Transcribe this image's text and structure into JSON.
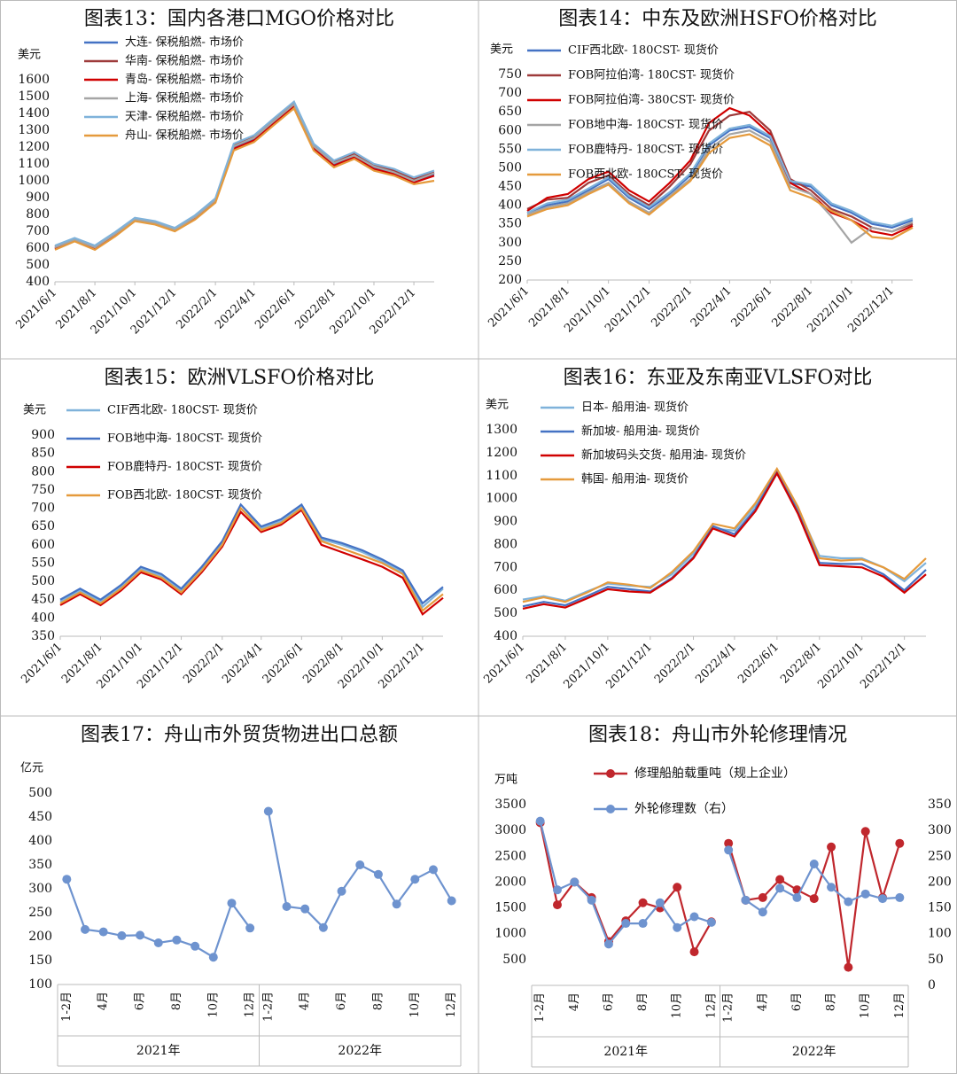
{
  "chart_data": [
    {
      "type": "line",
      "title": "图表13：国内各港口MGO价格对比",
      "y_label": "美元",
      "x": [
        "2021/6/1",
        "2021/7/1",
        "2021/8/1",
        "2021/9/1",
        "2021/10/1",
        "2021/11/1",
        "2021/12/1",
        "2022/1/1",
        "2022/2/1",
        "2022/3/1",
        "2022/4/1",
        "2022/5/1",
        "2022/6/1",
        "2022/7/1",
        "2022/8/1",
        "2022/9/1",
        "2022/10/1",
        "2022/11/1",
        "2022/12/1",
        "2023/1/1"
      ],
      "xlim": [
        "2021/6/1",
        "2023/1/1"
      ],
      "xticks": [
        "2021/6/1",
        "2021/8/1",
        "2021/10/1",
        "2021/12/1",
        "2022/2/1",
        "2022/4/1",
        "2022/6/1",
        "2022/8/1",
        "2022/10/1",
        "2022/12/1"
      ],
      "ylim": [
        400,
        1600
      ],
      "yticks": [
        400,
        500,
        600,
        700,
        800,
        900,
        1000,
        1100,
        1200,
        1300,
        1400,
        1500,
        1600
      ],
      "series": [
        {
          "name": "大连- 保税船燃- 市场价",
          "color": "#4472c4",
          "values": [
            600,
            650,
            600,
            680,
            770,
            750,
            710,
            780,
            880,
            1200,
            1250,
            1350,
            1450,
            1200,
            1100,
            1150,
            1080,
            1050,
            1000,
            1040
          ]
        },
        {
          "name": "华南- 保税船燃- 市场价",
          "color": "#9e3b3b",
          "values": [
            610,
            655,
            610,
            690,
            775,
            755,
            715,
            790,
            890,
            1210,
            1260,
            1360,
            1460,
            1210,
            1110,
            1160,
            1090,
            1060,
            1010,
            1050
          ]
        },
        {
          "name": "青岛- 保税船燃- 市场价",
          "color": "#d00000",
          "values": [
            595,
            645,
            595,
            675,
            765,
            745,
            705,
            775,
            875,
            1190,
            1240,
            1340,
            1440,
            1190,
            1090,
            1140,
            1070,
            1040,
            990,
            1030
          ]
        },
        {
          "name": "上海- 保税船燃- 市场价",
          "color": "#a5a5a5",
          "values": [
            605,
            650,
            605,
            685,
            770,
            750,
            710,
            785,
            885,
            1205,
            1255,
            1355,
            1455,
            1205,
            1105,
            1150,
            1085,
            1050,
            1000,
            1045
          ]
        },
        {
          "name": "天津- 保税船燃- 市场价",
          "color": "#7fb2da",
          "values": [
            615,
            660,
            615,
            695,
            780,
            760,
            720,
            795,
            895,
            1220,
            1270,
            1370,
            1470,
            1220,
            1120,
            1170,
            1100,
            1070,
            1020,
            1060
          ]
        },
        {
          "name": "舟山- 保税船燃- 市场价",
          "color": "#e59a3c",
          "values": [
            590,
            640,
            590,
            670,
            760,
            740,
            700,
            770,
            870,
            1180,
            1230,
            1330,
            1430,
            1180,
            1080,
            1130,
            1060,
            1030,
            980,
            1000
          ]
        }
      ]
    },
    {
      "type": "line",
      "title": "图表14：中东及欧洲HSFO价格对比",
      "y_label": "美元",
      "x": [
        "2021/6/1",
        "2021/7/1",
        "2021/8/1",
        "2021/9/1",
        "2021/10/1",
        "2021/11/1",
        "2021/12/1",
        "2022/1/1",
        "2022/2/1",
        "2022/3/1",
        "2022/4/1",
        "2022/5/1",
        "2022/6/1",
        "2022/7/1",
        "2022/8/1",
        "2022/9/1",
        "2022/10/1",
        "2022/11/1",
        "2022/12/1",
        "2023/1/1"
      ],
      "xlim": [
        "2021/6/1",
        "2023/1/1"
      ],
      "xticks": [
        "2021/6/1",
        "2021/8/1",
        "2021/10/1",
        "2021/12/1",
        "2022/2/1",
        "2022/4/1",
        "2022/6/1",
        "2022/8/1",
        "2022/10/1",
        "2022/12/1"
      ],
      "ylim": [
        200,
        750
      ],
      "yticks": [
        200,
        250,
        300,
        350,
        400,
        450,
        500,
        550,
        600,
        650,
        700,
        750
      ],
      "series": [
        {
          "name": "CIF西北欧- 180CST- 现货价",
          "color": "#4472c4",
          "values": [
            380,
            400,
            410,
            440,
            470,
            420,
            390,
            430,
            480,
            560,
            600,
            610,
            580,
            460,
            450,
            400,
            380,
            350,
            340,
            360
          ]
        },
        {
          "name": "FOB阿拉伯湾- 180CST- 现货价",
          "color": "#9e3b3b",
          "values": [
            390,
            415,
            420,
            460,
            480,
            430,
            400,
            450,
            510,
            600,
            640,
            650,
            600,
            470,
            440,
            390,
            370,
            340,
            330,
            350
          ]
        },
        {
          "name": "FOB阿拉伯湾- 380CST- 现货价",
          "color": "#d00000",
          "values": [
            385,
            420,
            430,
            470,
            490,
            440,
            410,
            460,
            520,
            620,
            660,
            640,
            590,
            460,
            430,
            380,
            360,
            330,
            320,
            345
          ]
        },
        {
          "name": "FOB地中海- 180CST- 现货价",
          "color": "#a5a5a5",
          "values": [
            375,
            395,
            405,
            435,
            460,
            410,
            380,
            425,
            470,
            550,
            590,
            600,
            570,
            450,
            430,
            370,
            300,
            340,
            330,
            355
          ]
        },
        {
          "name": "FOB鹿特丹- 180CST- 现货价",
          "color": "#7fb2da",
          "values": [
            380,
            405,
            415,
            445,
            475,
            425,
            395,
            435,
            485,
            565,
            605,
            615,
            585,
            465,
            455,
            405,
            385,
            355,
            345,
            365
          ]
        },
        {
          "name": "FOB西北欧- 180CST- 现货价",
          "color": "#e59a3c",
          "values": [
            370,
            390,
            400,
            430,
            455,
            405,
            375,
            420,
            465,
            540,
            580,
            590,
            560,
            440,
            420,
            385,
            360,
            315,
            310,
            340
          ]
        }
      ]
    },
    {
      "type": "line",
      "title": "图表15：欧洲VLSFO价格对比",
      "y_label": "美元",
      "x": [
        "2021/6/1",
        "2021/7/1",
        "2021/8/1",
        "2021/9/1",
        "2021/10/1",
        "2021/11/1",
        "2021/12/1",
        "2022/1/1",
        "2022/2/1",
        "2022/3/1",
        "2022/4/1",
        "2022/5/1",
        "2022/6/1",
        "2022/7/1",
        "2022/8/1",
        "2022/9/1",
        "2022/10/1",
        "2022/11/1",
        "2022/12/1",
        "2023/1/1"
      ],
      "xlim": [
        "2021/6/1",
        "2023/1/1"
      ],
      "xticks": [
        "2021/6/1",
        "2021/8/1",
        "2021/10/1",
        "2021/12/1",
        "2022/2/1",
        "2022/4/1",
        "2022/6/1",
        "2022/8/1",
        "2022/10/1",
        "2022/12/1"
      ],
      "ylim": [
        350,
        900
      ],
      "yticks": [
        350,
        400,
        450,
        500,
        550,
        600,
        650,
        700,
        750,
        800,
        850,
        900
      ],
      "series": [
        {
          "name": "CIF西北欧- 180CST- 现货价",
          "color": "#7fb2da",
          "values": [
            445,
            475,
            445,
            485,
            535,
            515,
            475,
            535,
            605,
            700,
            645,
            665,
            705,
            615,
            600,
            580,
            555,
            525,
            430,
            480
          ]
        },
        {
          "name": "FOB地中海- 180CST- 现货价",
          "color": "#4472c4",
          "values": [
            450,
            480,
            450,
            490,
            540,
            520,
            480,
            540,
            610,
            710,
            650,
            670,
            710,
            620,
            605,
            585,
            560,
            530,
            440,
            485
          ]
        },
        {
          "name": "FOB鹿特丹- 180CST- 现货价",
          "color": "#d00000",
          "values": [
            435,
            465,
            435,
            475,
            525,
            505,
            465,
            525,
            595,
            690,
            635,
            655,
            695,
            600,
            580,
            560,
            540,
            510,
            410,
            455
          ]
        },
        {
          "name": "FOB西北欧- 180CST- 现货价",
          "color": "#e59a3c",
          "values": [
            440,
            470,
            440,
            480,
            530,
            510,
            470,
            530,
            600,
            700,
            640,
            660,
            700,
            610,
            590,
            570,
            550,
            520,
            420,
            465
          ]
        }
      ]
    },
    {
      "type": "line",
      "title": "图表16：东亚及东南亚VLSFO对比",
      "y_label": "美元",
      "x": [
        "2021/6/1",
        "2021/7/1",
        "2021/8/1",
        "2021/9/1",
        "2021/10/1",
        "2021/11/1",
        "2021/12/1",
        "2022/1/1",
        "2022/2/1",
        "2022/3/1",
        "2022/4/1",
        "2022/5/1",
        "2022/6/1",
        "2022/7/1",
        "2022/8/1",
        "2022/9/1",
        "2022/10/1",
        "2022/11/1",
        "2022/12/1",
        "2023/1/1"
      ],
      "xlim": [
        "2021/6/1",
        "2023/1/1"
      ],
      "xticks": [
        "2021/6/1",
        "2021/8/1",
        "2021/10/1",
        "2021/12/1",
        "2022/2/1",
        "2022/4/1",
        "2022/6/1",
        "2022/8/1",
        "2022/10/1",
        "2022/12/1"
      ],
      "ylim": [
        400,
        1300
      ],
      "yticks": [
        400,
        500,
        600,
        700,
        800,
        900,
        1000,
        1100,
        1200,
        1300
      ],
      "series": [
        {
          "name": "日本- 船用油- 现货价",
          "color": "#7fb2da",
          "values": [
            560,
            575,
            555,
            595,
            630,
            620,
            615,
            670,
            760,
            870,
            860,
            970,
            1110,
            960,
            750,
            740,
            740,
            700,
            640,
            720
          ]
        },
        {
          "name": "新加坡- 船用油- 现货价",
          "color": "#4472c4",
          "values": [
            530,
            550,
            535,
            575,
            615,
            605,
            595,
            655,
            745,
            880,
            845,
            955,
            1120,
            945,
            720,
            715,
            715,
            670,
            600,
            690
          ]
        },
        {
          "name": "新加坡码头交货- 船用油- 现货价",
          "color": "#d00000",
          "values": [
            520,
            540,
            525,
            565,
            605,
            595,
            590,
            650,
            740,
            870,
            835,
            945,
            1110,
            935,
            710,
            705,
            700,
            660,
            590,
            670
          ]
        },
        {
          "name": "韩国- 船用油- 现货价",
          "color": "#e59a3c",
          "values": [
            550,
            570,
            550,
            590,
            635,
            625,
            610,
            680,
            770,
            890,
            870,
            980,
            1130,
            965,
            740,
            730,
            735,
            700,
            650,
            740
          ]
        }
      ]
    },
    {
      "type": "line",
      "title": "图表17：舟山市外贸货物进出口总额",
      "y_label": "亿元",
      "categories": [
        "1-2月",
        null,
        "4月",
        null,
        "6月",
        null,
        "8月",
        null,
        "10月",
        null,
        "12月",
        "1-2月",
        null,
        "4月",
        null,
        "6月",
        null,
        "8月",
        null,
        "10月",
        null,
        "12月"
      ],
      "groups": [
        "2021年",
        "2022年"
      ],
      "ylim": [
        100,
        500
      ],
      "yticks": [
        100,
        150,
        200,
        250,
        300,
        350,
        400,
        450,
        500
      ],
      "markers": true,
      "series": [
        {
          "color": "#6e93cf",
          "values": [
            320,
            215,
            210,
            202,
            203,
            187,
            193,
            180,
            157,
            270,
            218,
            462,
            263,
            258,
            219,
            295,
            350,
            330,
            268,
            320,
            340,
            275
          ]
        }
      ]
    },
    {
      "type": "line",
      "title": "图表18：舟山市外轮修理情况",
      "y_label": "万吨",
      "categories": [
        "1-2月",
        null,
        "4月",
        null,
        "6月",
        null,
        "8月",
        null,
        "10月",
        null,
        "12月",
        "1-2月",
        null,
        "4月",
        null,
        "6月",
        null,
        "8月",
        null,
        "10月",
        null,
        "12月"
      ],
      "groups": [
        "2021年",
        "2022年"
      ],
      "ylim": [
        0,
        3500
      ],
      "yticks": [
        500,
        1000,
        1500,
        2000,
        2500,
        3000,
        3500
      ],
      "y2lim": [
        0,
        350
      ],
      "y2ticks": [
        0,
        50,
        100,
        150,
        200,
        250,
        300,
        350
      ],
      "markers": true,
      "series": [
        {
          "name": "修理船舶载重吨（规上企业）",
          "color": "#c0272d",
          "values": [
            3150,
            1560,
            2000,
            1700,
            850,
            1250,
            1600,
            1500,
            1900,
            650,
            1230,
            2750,
            1650,
            1700,
            2050,
            1850,
            1680,
            2680,
            350,
            2980,
            1700,
            2750
          ]
        },
        {
          "name": "外轮修理数（右）",
          "color": "#6e93cf",
          "axis": "y2",
          "values": [
            318,
            185,
            200,
            165,
            80,
            120,
            120,
            160,
            112,
            133,
            122,
            262,
            165,
            142,
            188,
            170,
            235,
            190,
            162,
            177,
            168,
            170
          ]
        }
      ]
    }
  ]
}
